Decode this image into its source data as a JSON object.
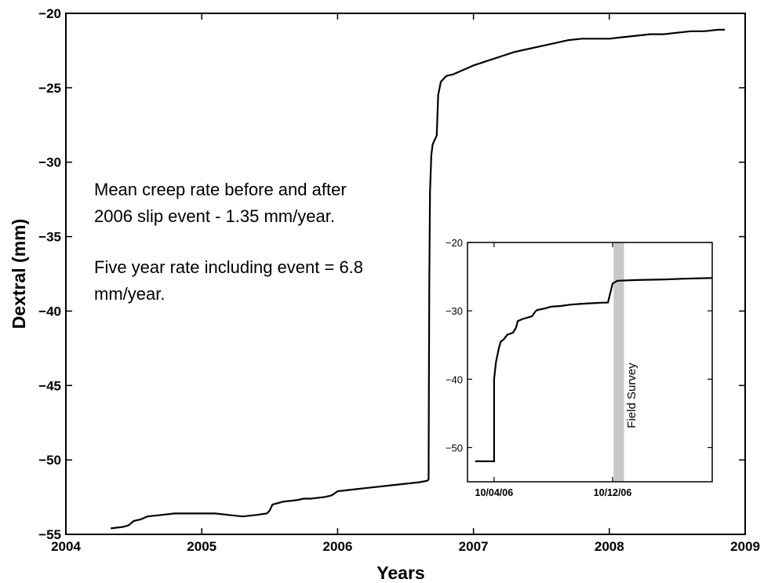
{
  "chart_data": [
    {
      "type": "line",
      "xlabel": "Years",
      "ylabel": "Dextral (mm)",
      "xlim": [
        2004,
        2009
      ],
      "ylim": [
        -55,
        -20
      ],
      "xticks": [
        2004,
        2005,
        2006,
        2007,
        2008,
        2009
      ],
      "xtick_labels": [
        "2004",
        "2005",
        "2006",
        "2007",
        "2008",
        "2009"
      ],
      "yticks": [
        -55,
        -50,
        -45,
        -40,
        -35,
        -30,
        -25,
        -20
      ],
      "ytick_labels": [
        "−55",
        "−50",
        "−45",
        "−40",
        "−35",
        "−30",
        "−25",
        "−20"
      ],
      "grid": false,
      "annotations": [
        "Mean creep rate before and after",
        "2006 slip event - 1.35 mm/year.",
        "Five year rate including event = 6.8",
        "mm/year."
      ],
      "series": [
        {
          "color": "#000000",
          "x": [
            2004.33,
            2004.42,
            2004.46,
            2004.5,
            2004.55,
            2004.6,
            2004.7,
            2004.8,
            2004.9,
            2005.0,
            2005.1,
            2005.2,
            2005.3,
            2005.4,
            2005.48,
            2005.5,
            2005.52,
            2005.6,
            2005.7,
            2005.75,
            2005.8,
            2005.9,
            2005.95,
            2005.97,
            2006.0,
            2006.1,
            2006.2,
            2006.3,
            2006.4,
            2006.5,
            2006.6,
            2006.66,
            2006.67,
            2006.672,
            2006.675,
            2006.68,
            2006.69,
            2006.7,
            2006.72,
            2006.73,
            2006.74,
            2006.76,
            2006.78,
            2006.8,
            2006.85,
            2006.9,
            2006.95,
            2007.0,
            2007.1,
            2007.2,
            2007.3,
            2007.4,
            2007.5,
            2007.6,
            2007.7,
            2007.8,
            2007.9,
            2008.0,
            2008.1,
            2008.2,
            2008.3,
            2008.4,
            2008.5,
            2008.6,
            2008.7,
            2008.8,
            2008.85
          ],
          "y": [
            -54.6,
            -54.5,
            -54.4,
            -54.1,
            -54.0,
            -53.8,
            -53.7,
            -53.6,
            -53.6,
            -53.6,
            -53.6,
            -53.7,
            -53.8,
            -53.7,
            -53.6,
            -53.4,
            -53.0,
            -52.8,
            -52.7,
            -52.6,
            -52.6,
            -52.5,
            -52.4,
            -52.3,
            -52.1,
            -52.0,
            -51.9,
            -51.8,
            -51.7,
            -51.6,
            -51.5,
            -51.4,
            -51.3,
            -45.0,
            -38.0,
            -32.0,
            -29.5,
            -28.8,
            -28.4,
            -28.2,
            -25.5,
            -24.6,
            -24.4,
            -24.2,
            -24.1,
            -23.9,
            -23.7,
            -23.5,
            -23.2,
            -22.9,
            -22.6,
            -22.4,
            -22.2,
            -22.0,
            -21.8,
            -21.7,
            -21.7,
            -21.7,
            -21.6,
            -21.5,
            -21.4,
            -21.4,
            -21.3,
            -21.2,
            -21.2,
            -21.1,
            -21.1
          ]
        }
      ]
    },
    {
      "type": "line",
      "inset": true,
      "ylim": [
        -55,
        -20
      ],
      "yticks": [
        -50,
        -40,
        -30,
        -20
      ],
      "ytick_labels": [
        "−50",
        "−40",
        "−30",
        "−20"
      ],
      "xticks": [
        "10/04/06",
        "10/12/06"
      ],
      "xtick_labels": [
        "10/04/06",
        "10/12/06"
      ],
      "grid": false,
      "annotations": [
        "Field Survey"
      ],
      "highlight_band": {
        "color": "#c8c8c8"
      },
      "series": [
        {
          "color": "#000000",
          "x": [
            0.0,
            2.0,
            2.0,
            2.2,
            2.5,
            2.7,
            3.0,
            3.4,
            4.0,
            4.3,
            4.5,
            5.0,
            6.0,
            6.3,
            6.5,
            7.5,
            7.7,
            8.0,
            9.0,
            10.0,
            11.0,
            12.0,
            13.5,
            14.0,
            14.5,
            15.0,
            17.0,
            20.0,
            22.0,
            25.0
          ],
          "y": [
            -52,
            -52,
            -40,
            -37.5,
            -35.5,
            -34.5,
            -34.2,
            -33.5,
            -33.2,
            -32.5,
            -31.5,
            -31.2,
            -30.8,
            -30.2,
            -29.9,
            -29.6,
            -29.5,
            -29.4,
            -29.3,
            -29.1,
            -29.0,
            -28.9,
            -28.8,
            -28.8,
            -26.0,
            -25.6,
            -25.5,
            -25.4,
            -25.3,
            -25.2
          ]
        }
      ]
    }
  ]
}
